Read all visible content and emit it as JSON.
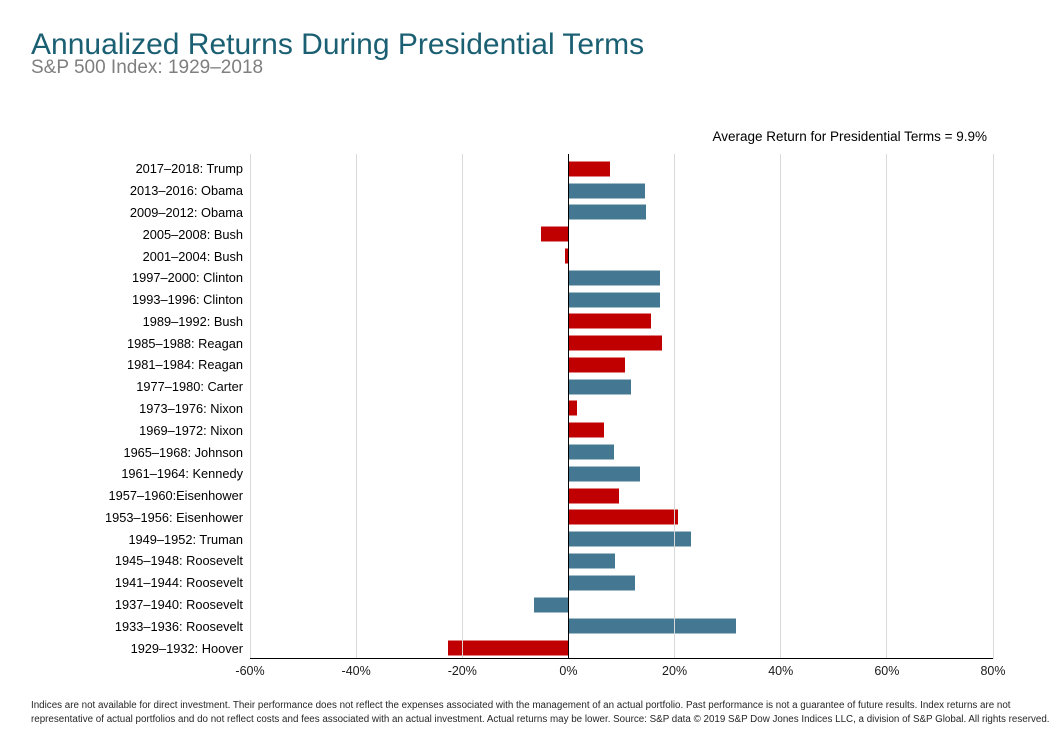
{
  "page": {
    "annotation": "Average Return for Presidential Terms = 9.9%",
    "footer_line1": "Indices are not available for direct investment. Their performance does not reflect the expenses associated with the management of an actual portfolio. Past performance is not a guarantee of future results. Index returns are not",
    "footer_line2": "representative of actual portfolios and do not reflect costs and fees associated with an actual investment. Actual returns may be lower. Source: S&P data © 2019 S&P Dow Jones Indices LLC, a division of S&P Global. All rights reserved."
  },
  "chart_data": {
    "type": "bar",
    "orientation": "horizontal",
    "title": "Annualized Returns During Presidential Terms",
    "subtitle": "S&P 500 Index: 1929–2018",
    "annotation": "Average Return for Presidential Terms = 9.9%",
    "average_return_pct": 9.9,
    "xlim": [
      -60,
      80
    ],
    "grid": true,
    "unit": "%",
    "colors": {
      "republican": "#c00000",
      "democrat": "#447892",
      "title_accent": "#1b5f73",
      "gridline": "#d9d9d9"
    },
    "x_ticks": [
      {
        "value": -60,
        "label": "-60%"
      },
      {
        "value": -40,
        "label": "-40%"
      },
      {
        "value": -20,
        "label": "-20%"
      },
      {
        "value": 0,
        "label": "0%"
      },
      {
        "value": 20,
        "label": "20%"
      },
      {
        "value": 40,
        "label": "40%"
      },
      {
        "value": 60,
        "label": "60%"
      },
      {
        "value": 80,
        "label": "80%"
      }
    ],
    "rows": [
      {
        "label": "2017–2018: Trump",
        "value": 7.9,
        "party": "republican"
      },
      {
        "label": "2013–2016: Obama",
        "value": 14.5,
        "party": "democrat"
      },
      {
        "label": "2009–2012: Obama",
        "value": 14.6,
        "party": "democrat"
      },
      {
        "label": "2005–2008: Bush",
        "value": -5.2,
        "party": "republican"
      },
      {
        "label": "2001–2004: Bush",
        "value": -0.6,
        "party": "republican"
      },
      {
        "label": "1997–2000: Clinton",
        "value": 17.2,
        "party": "democrat"
      },
      {
        "label": "1993–1996: Clinton",
        "value": 17.3,
        "party": "democrat"
      },
      {
        "label": "1989–1992: Bush",
        "value": 15.5,
        "party": "republican"
      },
      {
        "label": "1985–1988: Reagan",
        "value": 17.7,
        "party": "republican"
      },
      {
        "label": "1981–1984: Reagan",
        "value": 10.7,
        "party": "republican"
      },
      {
        "label": "1977–1980: Carter",
        "value": 11.7,
        "party": "democrat"
      },
      {
        "label": "1973–1976: Nixon",
        "value": 1.6,
        "party": "republican"
      },
      {
        "label": "1969–1972: Nixon",
        "value": 6.7,
        "party": "republican"
      },
      {
        "label": "1965–1968: Johnson",
        "value": 8.6,
        "party": "democrat"
      },
      {
        "label": "1961–1964: Kennedy",
        "value": 13.4,
        "party": "democrat"
      },
      {
        "label": "1957–1960:Eisenhower",
        "value": 9.5,
        "party": "republican"
      },
      {
        "label": "1953–1956: Eisenhower",
        "value": 20.7,
        "party": "republican"
      },
      {
        "label": "1949–1952: Truman",
        "value": 23.1,
        "party": "democrat"
      },
      {
        "label": "1945–1948: Roosevelt",
        "value": 8.7,
        "party": "democrat"
      },
      {
        "label": "1941–1944: Roosevelt",
        "value": 12.5,
        "party": "democrat"
      },
      {
        "label": "1937–1940: Roosevelt",
        "value": -6.5,
        "party": "democrat"
      },
      {
        "label": "1933–1936: Roosevelt",
        "value": 31.6,
        "party": "democrat"
      },
      {
        "label": "1929–1932: Hoover",
        "value": -22.7,
        "party": "republican"
      }
    ]
  }
}
